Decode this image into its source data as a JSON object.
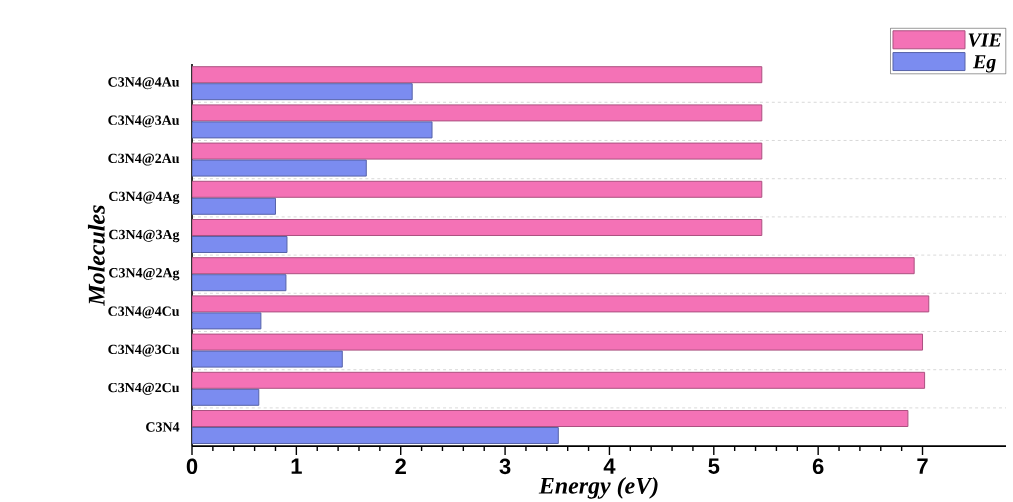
{
  "chart_data": {
    "type": "bar",
    "orientation": "horizontal",
    "xlabel": "Energy (eV)",
    "ylabel": "Molecules",
    "categories": [
      "C3N4@4Au",
      "C3N4@3Au",
      "C3N4@2Au",
      "C3N4@4Ag",
      "C3N4@3Ag",
      "C3N4@2Ag",
      "C3N4@4Cu",
      "C3N4@3Cu",
      "C3N4@2Cu",
      "C3N4"
    ],
    "series": [
      {
        "name": "VIE",
        "color": "#f472b6",
        "values": [
          5.46,
          5.46,
          5.46,
          5.46,
          5.46,
          6.92,
          7.06,
          7.0,
          7.02,
          6.86
        ]
      },
      {
        "name": "Eg",
        "color": "#7b8cf0",
        "values": [
          2.11,
          2.3,
          1.67,
          0.8,
          0.91,
          0.9,
          0.66,
          1.44,
          0.64,
          3.51
        ]
      }
    ],
    "xlim": [
      0,
      7.8
    ],
    "xticks": [
      0,
      1,
      2,
      3,
      4,
      5,
      6,
      7
    ],
    "grid": "y",
    "legend": "top right"
  }
}
